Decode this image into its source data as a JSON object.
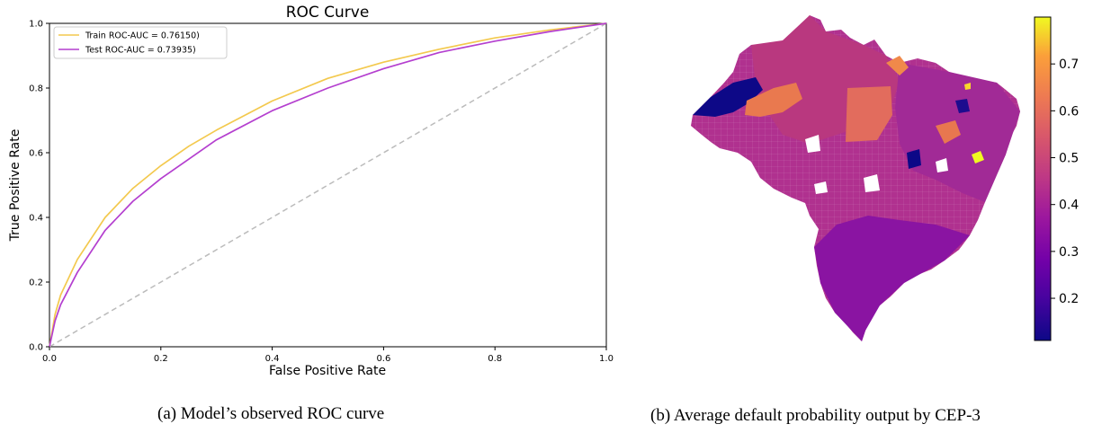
{
  "chart_data": [
    {
      "type": "line",
      "title": "ROC Curve",
      "xlabel": "False Positive Rate",
      "ylabel": "True Positive Rate",
      "xlim": [
        0,
        1
      ],
      "ylim": [
        0,
        1
      ],
      "xticks": [
        "0.0",
        "0.2",
        "0.4",
        "0.6",
        "0.8",
        "1.0"
      ],
      "yticks": [
        "0.0",
        "0.2",
        "0.4",
        "0.6",
        "0.8",
        "1.0"
      ],
      "grid": false,
      "legend_position": "top-left",
      "series": [
        {
          "name": "Train ROC-AUC = 0.76150)",
          "color": "#f3c94e",
          "x": [
            0,
            0.01,
            0.02,
            0.05,
            0.1,
            0.15,
            0.2,
            0.25,
            0.3,
            0.4,
            0.5,
            0.6,
            0.7,
            0.8,
            0.9,
            1.0
          ],
          "y": [
            0,
            0.1,
            0.16,
            0.27,
            0.4,
            0.49,
            0.56,
            0.62,
            0.67,
            0.76,
            0.83,
            0.88,
            0.92,
            0.955,
            0.98,
            1.0
          ]
        },
        {
          "name": "Test ROC-AUC = 0.73935)",
          "color": "#b43fcf",
          "x": [
            0,
            0.01,
            0.02,
            0.05,
            0.1,
            0.15,
            0.2,
            0.25,
            0.3,
            0.4,
            0.5,
            0.6,
            0.7,
            0.8,
            0.9,
            1.0
          ],
          "y": [
            0,
            0.08,
            0.13,
            0.23,
            0.36,
            0.45,
            0.52,
            0.58,
            0.64,
            0.73,
            0.8,
            0.86,
            0.91,
            0.945,
            0.975,
            1.0
          ]
        },
        {
          "name": "",
          "color": "#bbbbbb",
          "dashed": true,
          "x": [
            0,
            1
          ],
          "y": [
            0,
            1
          ]
        }
      ],
      "caption": "(a) Model’s observed ROC curve"
    },
    {
      "type": "heatmap",
      "subtype": "choropleth-map",
      "colormap": "plasma",
      "colorbar_ticks": [
        "0.2",
        "0.3",
        "0.4",
        "0.5",
        "0.6",
        "0.7"
      ],
      "colorbar_tick_values": [
        0.2,
        0.3,
        0.4,
        0.5,
        0.6,
        0.7
      ],
      "value_range": [
        0.11,
        0.8
      ],
      "colors": {
        "base": "#b0318f",
        "north": "#b8367e",
        "low": "#0d0887",
        "high": "#f0f921",
        "orange": "#ec7c4f",
        "south": "#8a14a2"
      },
      "regions": [
        {
          "name": "far-west",
          "value": 0.11
        },
        {
          "name": "north-band",
          "value": 0.55
        },
        {
          "name": "central-block",
          "value": 0.55
        },
        {
          "name": "northeast-spot",
          "value": 0.78
        },
        {
          "name": "south",
          "value": 0.3
        }
      ],
      "caption": "(b) Average default probability output by CEP-3"
    }
  ]
}
